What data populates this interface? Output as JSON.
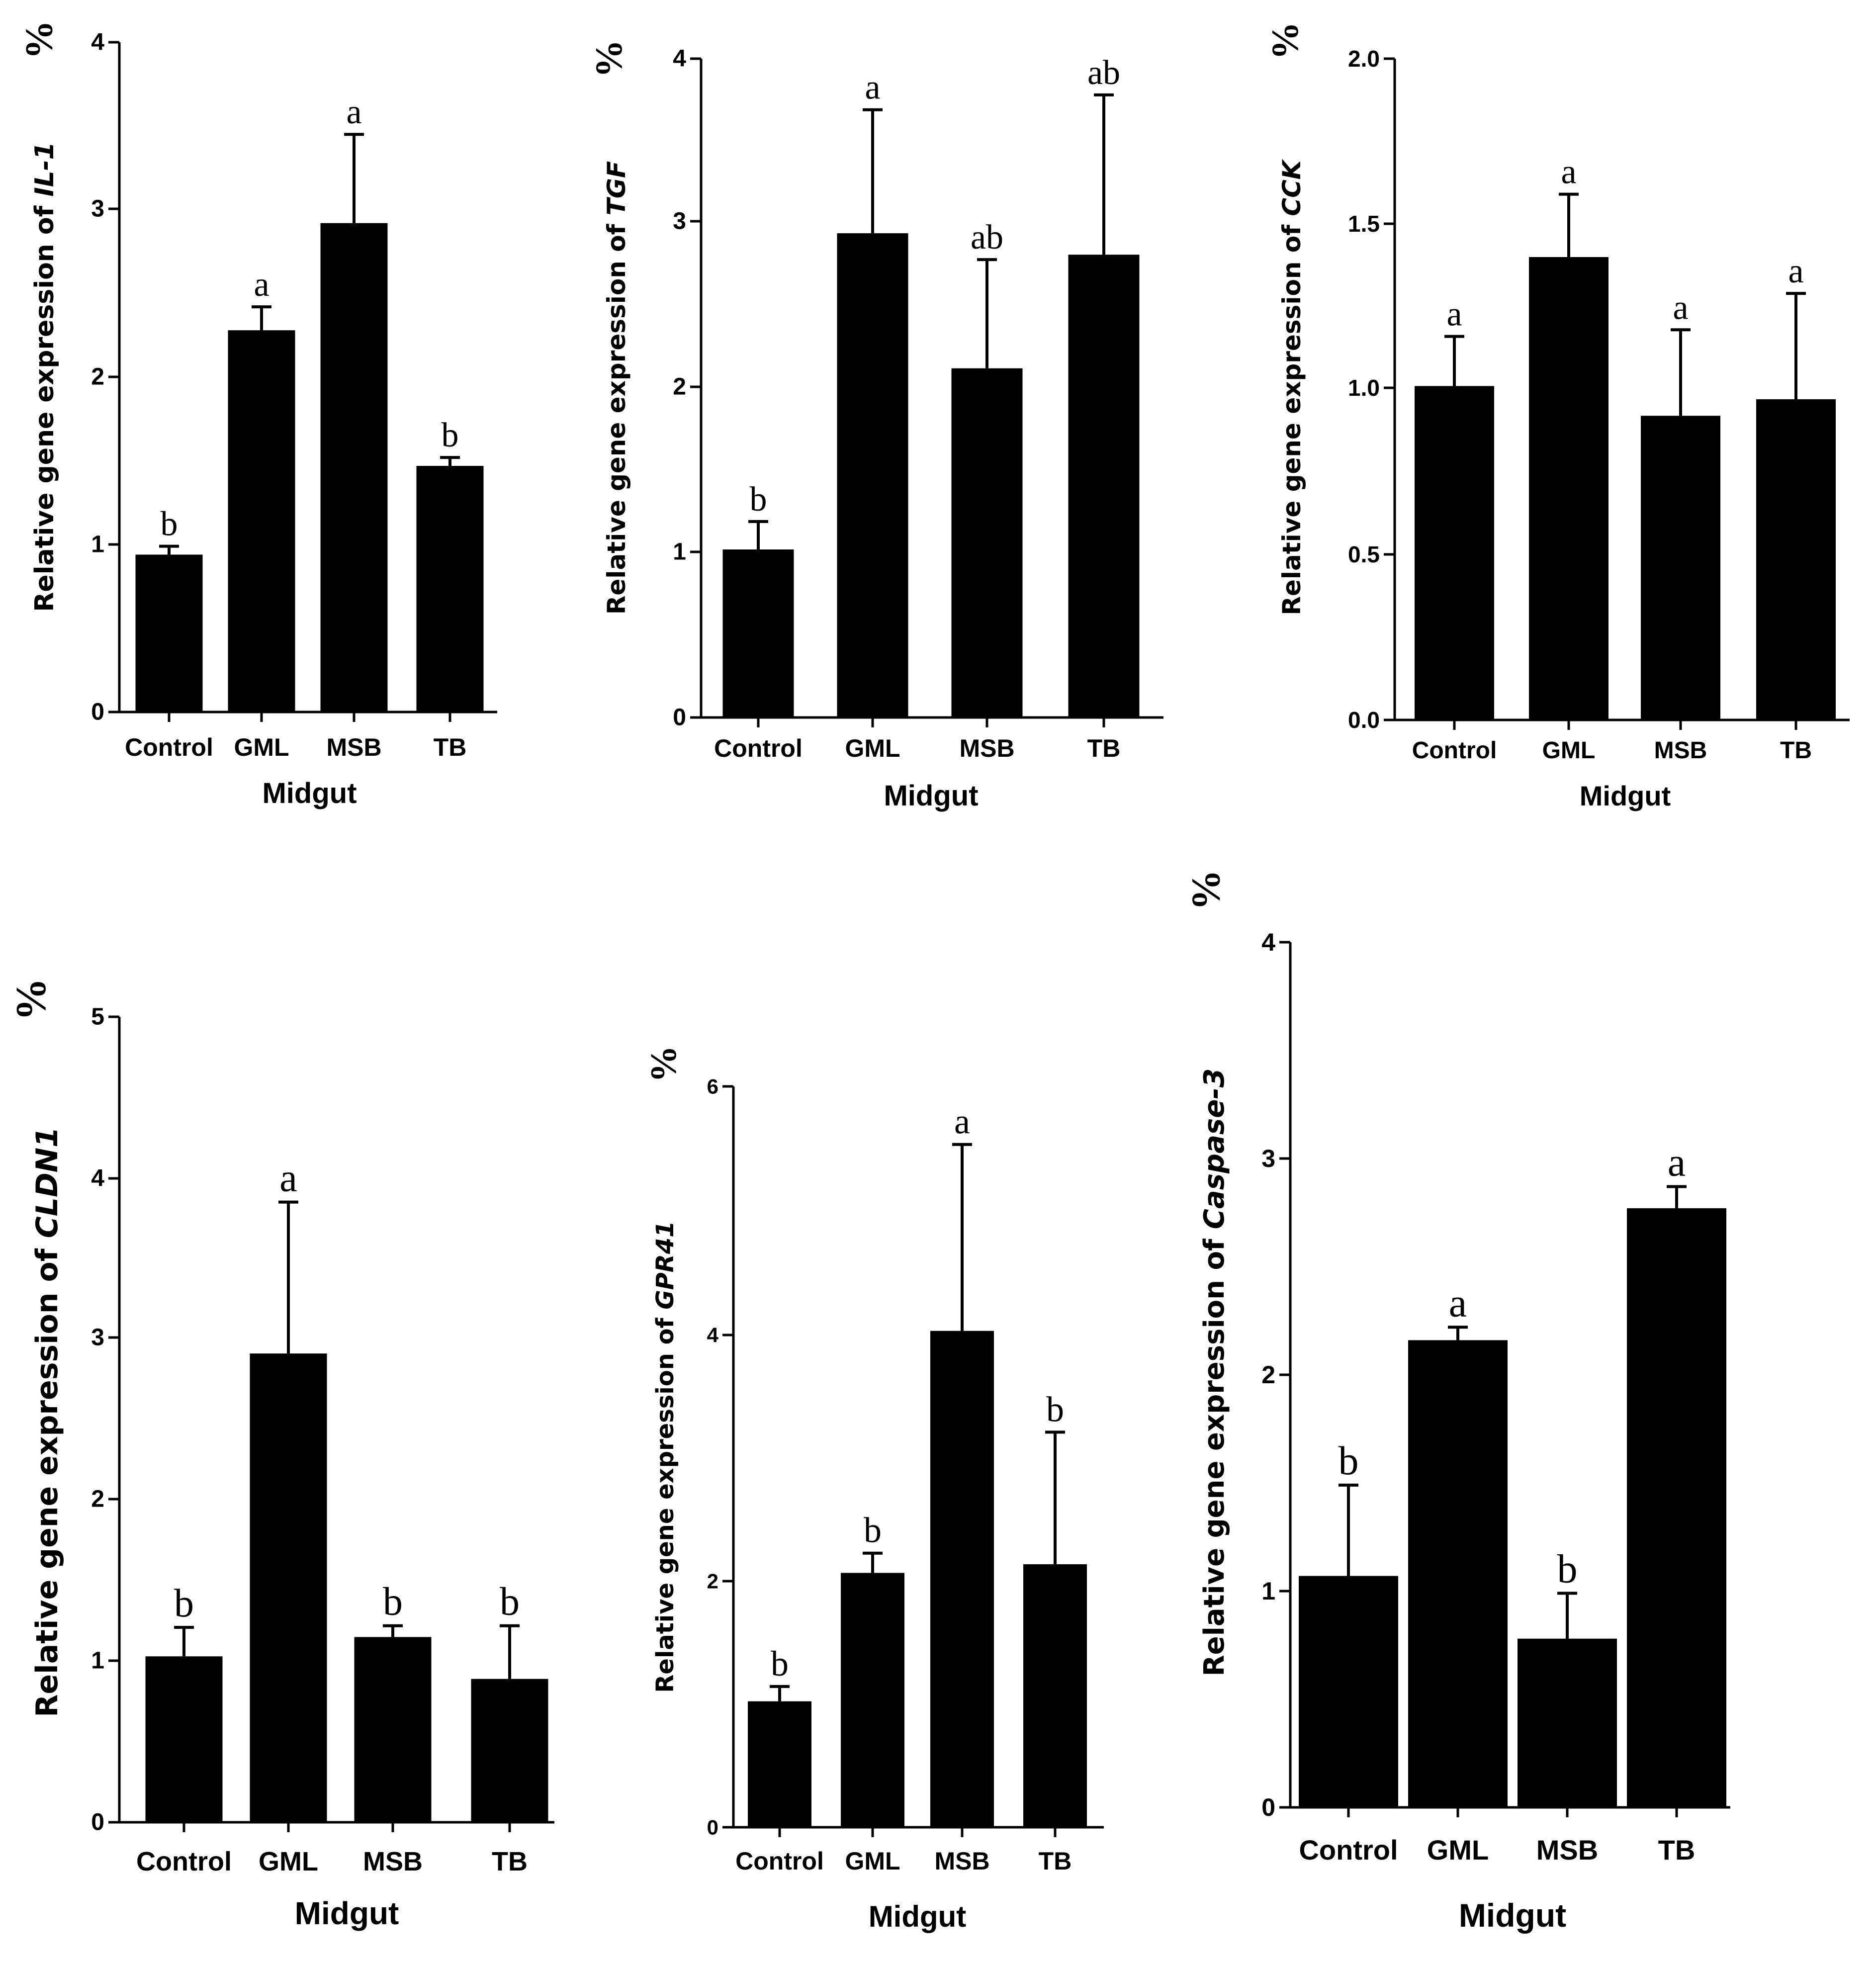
{
  "chart_data": [
    {
      "type": "bar",
      "id": "il1",
      "title": "",
      "percent_symbol": "%",
      "ylabel_prefix": "Relative gene expression of ",
      "ylabel_gene": "IL-1",
      "xlabel": "Midgut",
      "categories": [
        "Control",
        "GML",
        "MSB",
        "TB"
      ],
      "values": [
        0.94,
        2.28,
        2.92,
        1.47
      ],
      "errors": [
        0.05,
        0.14,
        0.53,
        0.05
      ],
      "significance": [
        "b",
        "a",
        "a",
        "b"
      ],
      "ylim": [
        0,
        4
      ],
      "yticks": [
        "0",
        "1",
        "2",
        "3",
        "4"
      ],
      "bar_color": "#000000"
    },
    {
      "type": "bar",
      "id": "tgf",
      "title": "",
      "percent_symbol": "%",
      "ylabel_prefix": "Relative gene expression of ",
      "ylabel_gene": "TGF",
      "xlabel": "Midgut",
      "categories": [
        "Control",
        "GML",
        "MSB",
        "TB"
      ],
      "values": [
        1.02,
        2.94,
        2.12,
        2.81
      ],
      "errors": [
        0.17,
        0.75,
        0.66,
        0.97
      ],
      "significance": [
        "b",
        "a",
        "ab",
        "ab"
      ],
      "ylim": [
        0,
        4
      ],
      "yticks": [
        "0",
        "1",
        "2",
        "3",
        "4"
      ],
      "bar_color": "#000000"
    },
    {
      "type": "bar",
      "id": "cck",
      "title": "",
      "percent_symbol": "%",
      "ylabel_prefix": "Relative gene expression of ",
      "ylabel_gene": "CCK",
      "xlabel": "Midgut",
      "categories": [
        "Control",
        "GML",
        "MSB",
        "TB"
      ],
      "values": [
        1.01,
        1.4,
        0.92,
        0.97
      ],
      "errors": [
        0.15,
        0.19,
        0.26,
        0.32
      ],
      "significance": [
        "a",
        "a",
        "a",
        "a"
      ],
      "ylim": [
        0,
        2
      ],
      "yticks": [
        "0.0",
        "0.5",
        "1.0",
        "1.5",
        "2.0"
      ],
      "bar_color": "#000000"
    },
    {
      "type": "bar",
      "id": "cldn1",
      "title": "",
      "percent_symbol": "%",
      "ylabel_prefix": "Relative gene expression of ",
      "ylabel_gene": "CLDN1",
      "xlabel": "Midgut",
      "categories": [
        "Control",
        "GML",
        "MSB",
        "TB"
      ],
      "values": [
        1.03,
        2.91,
        1.15,
        0.89
      ],
      "errors": [
        0.18,
        0.94,
        0.07,
        0.33
      ],
      "significance": [
        "b",
        "a",
        "b",
        "b"
      ],
      "ylim": [
        0,
        5
      ],
      "yticks": [
        "0",
        "1",
        "2",
        "3",
        "4",
        "5"
      ],
      "bar_color": "#000000"
    },
    {
      "type": "bar",
      "id": "gpr41",
      "title": "",
      "percent_symbol": "%",
      "ylabel_prefix": "Relative gene expression of ",
      "ylabel_gene": "GPR41",
      "xlabel": "Midgut",
      "categories": [
        "Control",
        "GML",
        "MSB",
        "TB"
      ],
      "values": [
        1.02,
        2.06,
        4.02,
        2.13
      ],
      "errors": [
        0.12,
        0.16,
        1.51,
        1.07
      ],
      "significance": [
        "b",
        "b",
        "a",
        "b"
      ],
      "ylim": [
        0,
        6
      ],
      "yticks": [
        "0",
        "2",
        "4",
        "6"
      ],
      "bar_color": "#000000"
    },
    {
      "type": "bar",
      "id": "caspase3",
      "title": "",
      "percent_symbol": "%",
      "ylabel_prefix": "Relative gene expression of ",
      "ylabel_gene": "Caspase-3",
      "xlabel": "Midgut",
      "categories": [
        "Control",
        "GML",
        "MSB",
        "TB"
      ],
      "values": [
        1.07,
        2.16,
        0.78,
        2.77
      ],
      "errors": [
        0.42,
        0.06,
        0.21,
        0.1
      ],
      "significance": [
        "b",
        "a",
        "b",
        "a"
      ],
      "ylim": [
        0,
        4
      ],
      "yticks": [
        "0",
        "1",
        "2",
        "3",
        "4"
      ],
      "bar_color": "#000000"
    }
  ]
}
